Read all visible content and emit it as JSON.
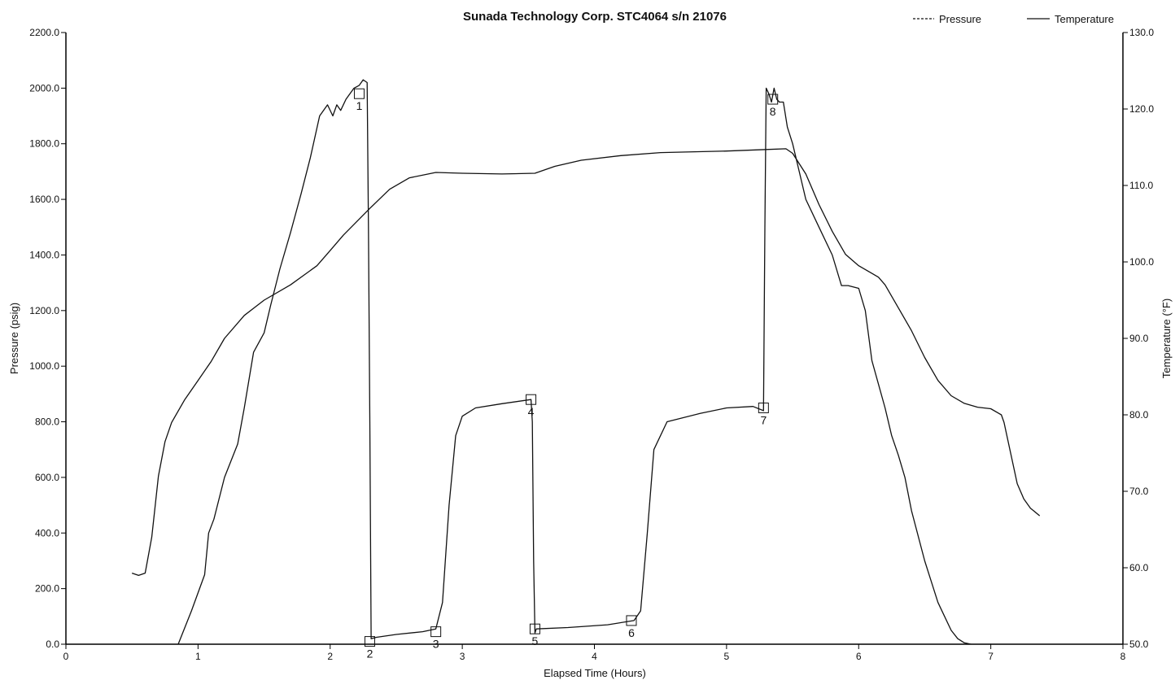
{
  "chart_data": {
    "type": "line",
    "title": "Sunada Technology Corp. STC4064 s/n 21076",
    "xlabel": "Elapsed Time (Hours)",
    "ylabel_left": "Pressure (psig)",
    "ylabel_right": "Temperature (°F)",
    "xlim": [
      0,
      8
    ],
    "ylim_left": [
      0,
      2200
    ],
    "ylim_right": [
      50,
      130
    ],
    "x_ticks": [
      "0",
      "1",
      "2",
      "3",
      "4",
      "5",
      "6",
      "7",
      "8"
    ],
    "y_ticks_left": [
      "0.0",
      "200.0",
      "400.0",
      "600.0",
      "800.0",
      "1000.0",
      "1200.0",
      "1400.0",
      "1600.0",
      "1800.0",
      "2000.0",
      "2200.0"
    ],
    "y_ticks_right": [
      "50.0",
      "60.0",
      "70.0",
      "80.0",
      "90.0",
      "100.0",
      "110.0",
      "120.0",
      "130.0"
    ],
    "grid": false,
    "legend_position": "top-right",
    "series": [
      {
        "name": "Pressure",
        "axis": "left",
        "x": [
          0.85,
          0.95,
          1.05,
          1.08,
          1.12,
          1.2,
          1.3,
          1.35,
          1.42,
          1.5,
          1.55,
          1.62,
          1.7,
          1.78,
          1.85,
          1.92,
          1.98,
          2.02,
          2.05,
          2.08,
          2.12,
          2.18,
          2.22,
          2.25,
          2.28,
          2.29,
          2.3,
          2.31,
          2.35,
          2.5,
          2.7,
          2.8,
          2.85,
          2.9,
          2.95,
          3.0,
          3.1,
          3.3,
          3.52,
          3.53,
          3.54,
          3.55,
          3.56,
          3.8,
          4.1,
          4.3,
          4.35,
          4.4,
          4.45,
          4.55,
          4.8,
          5.0,
          5.2,
          5.28,
          5.29,
          5.3,
          5.32,
          5.34,
          5.36,
          5.38,
          5.4,
          5.43,
          5.46,
          5.5,
          5.55,
          5.6,
          5.7,
          5.8,
          5.87,
          5.92,
          6.0,
          6.05,
          6.1,
          6.2,
          6.25,
          6.3,
          6.35,
          6.4,
          6.5,
          6.6,
          6.7,
          6.75,
          6.8,
          6.85
        ],
        "y": [
          0,
          120,
          250,
          400,
          450,
          600,
          720,
          850,
          1050,
          1120,
          1220,
          1350,
          1480,
          1620,
          1750,
          1900,
          1940,
          1900,
          1940,
          1920,
          1960,
          2000,
          2010,
          2030,
          2020,
          1500,
          800,
          20,
          25,
          35,
          45,
          55,
          150,
          500,
          750,
          820,
          850,
          865,
          880,
          800,
          300,
          40,
          55,
          60,
          70,
          85,
          120,
          400,
          700,
          800,
          830,
          850,
          855,
          840,
          1500,
          2000,
          1980,
          1950,
          2000,
          1960,
          1950,
          1950,
          1860,
          1800,
          1700,
          1600,
          1500,
          1400,
          1290,
          1290,
          1280,
          1200,
          1020,
          850,
          750,
          680,
          600,
          480,
          300,
          150,
          50,
          20,
          5,
          0
        ]
      },
      {
        "name": "Temperature",
        "axis": "right",
        "x": [
          0.5,
          0.55,
          0.6,
          0.65,
          0.7,
          0.75,
          0.8,
          0.9,
          1.0,
          1.1,
          1.2,
          1.35,
          1.5,
          1.7,
          1.9,
          2.0,
          2.1,
          2.3,
          2.45,
          2.6,
          2.8,
          3.0,
          3.3,
          3.55,
          3.7,
          3.9,
          4.2,
          4.5,
          5.0,
          5.3,
          5.45,
          5.5,
          5.6,
          5.7,
          5.8,
          5.9,
          6.0,
          6.1,
          6.15,
          6.2,
          6.3,
          6.4,
          6.5,
          6.6,
          6.7,
          6.8,
          6.9,
          7.0,
          7.08,
          7.1,
          7.15,
          7.2,
          7.25,
          7.3,
          7.37
        ],
        "y": [
          59.3,
          59.0,
          59.3,
          64.0,
          72.0,
          76.5,
          79.0,
          82.0,
          84.5,
          87.0,
          90.0,
          93.0,
          95.0,
          97.0,
          99.5,
          101.5,
          103.5,
          107.0,
          109.5,
          111.0,
          111.7,
          111.6,
          111.5,
          111.6,
          112.5,
          113.3,
          113.9,
          114.3,
          114.5,
          114.7,
          114.8,
          114.2,
          111.5,
          107.5,
          104.0,
          101.0,
          99.5,
          98.5,
          98.0,
          97.0,
          94.0,
          91.0,
          87.5,
          84.5,
          82.5,
          81.5,
          81.0,
          80.8,
          80.0,
          79.0,
          75.0,
          71.0,
          69.0,
          67.8,
          66.8
        ]
      }
    ],
    "markers": [
      {
        "label": "1",
        "x": 2.22,
        "y": 1980
      },
      {
        "label": "2",
        "x": 2.3,
        "y": 10
      },
      {
        "label": "3",
        "x": 2.8,
        "y": 45
      },
      {
        "label": "4",
        "x": 3.52,
        "y": 880
      },
      {
        "label": "5",
        "x": 3.55,
        "y": 55
      },
      {
        "label": "6",
        "x": 4.28,
        "y": 85
      },
      {
        "label": "7",
        "x": 5.28,
        "y": 850
      },
      {
        "label": "8",
        "x": 5.35,
        "y": 1960
      }
    ]
  }
}
